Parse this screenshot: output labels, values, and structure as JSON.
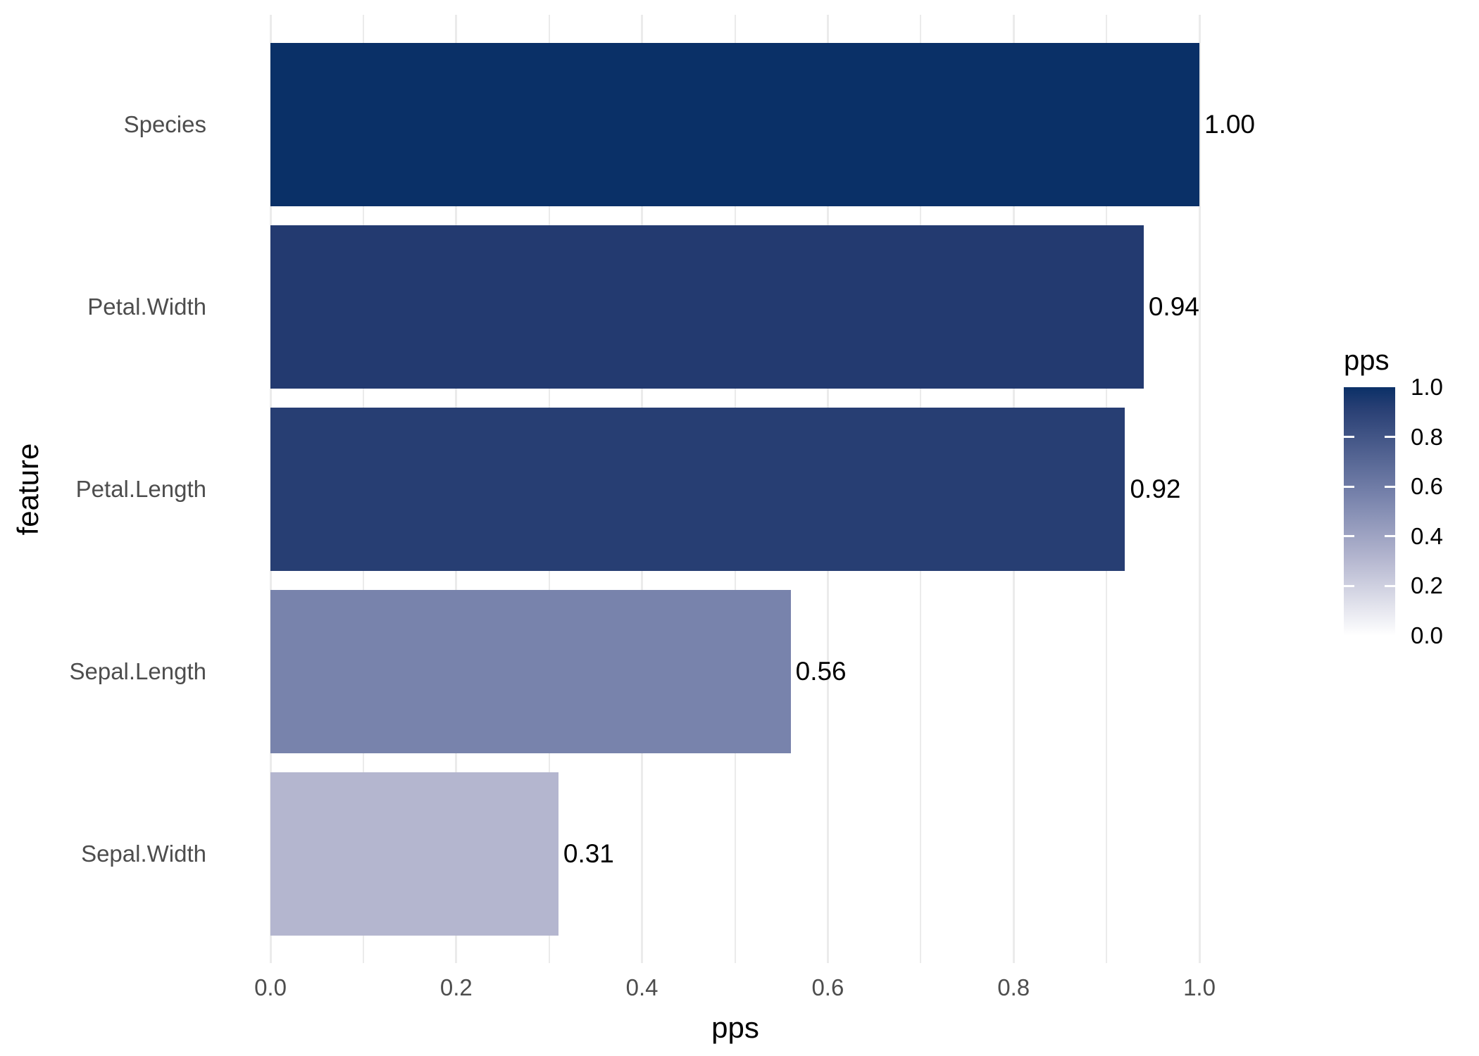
{
  "chart_data": {
    "type": "bar",
    "orientation": "horizontal",
    "title": "",
    "xlabel": "pps",
    "ylabel": "feature",
    "categories": [
      "Species",
      "Petal.Width",
      "Petal.Length",
      "Sepal.Length",
      "Sepal.Width"
    ],
    "values": [
      1.0,
      0.94,
      0.92,
      0.56,
      0.31
    ],
    "value_labels": [
      "1.00",
      "0.94",
      "0.92",
      "0.56",
      "0.31"
    ],
    "bar_colors": [
      "#0A3067",
      "#233A70",
      "#273E73",
      "#7883AC",
      "#B4B6CF"
    ],
    "xlim": [
      0.0,
      1.05
    ],
    "x_ticks": [
      0.0,
      0.2,
      0.4,
      0.6,
      0.8,
      1.0
    ],
    "x_tick_labels": [
      "0.0",
      "0.2",
      "0.4",
      "0.6",
      "0.8",
      "1.0"
    ],
    "x_minor_ticks": [
      0.1,
      0.3,
      0.5,
      0.7,
      0.9
    ],
    "grid": "vertical major and minor gridlines, no axis lines, white background",
    "legend": {
      "title": "pps",
      "type": "colorbar",
      "position": "right",
      "tick_labels": [
        "1.0",
        "0.8",
        "0.6",
        "0.4",
        "0.2",
        "0.0"
      ],
      "tick_values": [
        1.0,
        0.8,
        0.6,
        0.4,
        0.2,
        0.0
      ],
      "dash_tick_values": [
        0.8,
        0.6,
        0.4,
        0.2
      ],
      "gradient_stops": [
        {
          "value": 1.0,
          "color": "#0A3067"
        },
        {
          "value": 0.92,
          "color": "#273E73"
        },
        {
          "value": 0.56,
          "color": "#7883AC"
        },
        {
          "value": 0.31,
          "color": "#B4B6CF"
        },
        {
          "value": 0.0,
          "color": "#FFFFFF"
        }
      ]
    }
  },
  "colors": {
    "background": "#FFFFFF",
    "gridline": "#EBEBEB",
    "tick_label": "#4D4D4D",
    "axis_title": "#000000",
    "value_label": "#000000",
    "legend_text": "#000000",
    "legend_dash": "#FFFFFF"
  }
}
